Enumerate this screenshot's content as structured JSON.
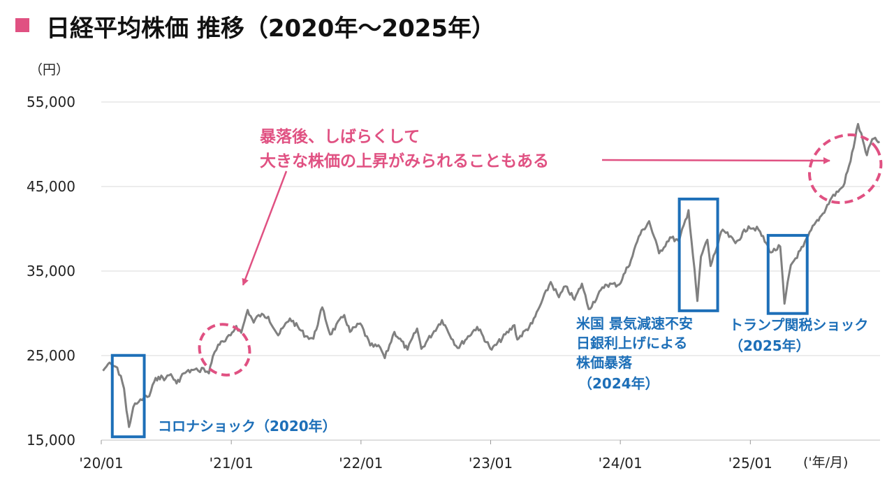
{
  "title": "日経平均株価 推移（2020年〜2025年）",
  "colors": {
    "title_marker": "#e05182",
    "line": "#808080",
    "highlight_box": "#1d6fb8",
    "rise_ellipse": "#e05182",
    "annotation_pink": "#e05182",
    "annotation_blue": "#1d6fb8",
    "grid": "#d9d9d9"
  },
  "chart_data": {
    "type": "line",
    "title": "日経平均株価 推移（2020年〜2025年）",
    "ylabel": "（円）",
    "xlabel": "('年/月)",
    "ylim": [
      15000,
      55000
    ],
    "y_ticks": [
      15000,
      25000,
      35000,
      45000,
      55000
    ],
    "y_tick_labels": [
      "15,000",
      "25,000",
      "35,000",
      "45,000",
      "55,000"
    ],
    "x_range": [
      "2020-01",
      "2026-01"
    ],
    "x_ticks": [
      "2020-01",
      "2021-01",
      "2022-01",
      "2023-01",
      "2024-01",
      "2025-01"
    ],
    "x_tick_labels": [
      "'20/01",
      "'21/01",
      "'22/01",
      "'23/01",
      "'24/01",
      "'25/01"
    ],
    "grid": "horizontal",
    "series": [
      {
        "points": [
          [
            "2020-01-06",
            23200
          ],
          [
            "2020-01-20",
            24000
          ],
          [
            "2020-02-10",
            23700
          ],
          [
            "2020-02-25",
            22600
          ],
          [
            "2020-03-05",
            21100
          ],
          [
            "2020-03-12",
            18500
          ],
          [
            "2020-03-19",
            16550
          ],
          [
            "2020-03-31",
            18900
          ],
          [
            "2020-04-15",
            19500
          ],
          [
            "2020-04-30",
            20000
          ],
          [
            "2020-05-15",
            20200
          ],
          [
            "2020-05-29",
            21900
          ],
          [
            "2020-06-10",
            22500
          ],
          [
            "2020-06-30",
            22300
          ],
          [
            "2020-07-15",
            22800
          ],
          [
            "2020-07-31",
            21700
          ],
          [
            "2020-08-20",
            22900
          ],
          [
            "2020-09-15",
            23300
          ],
          [
            "2020-09-30",
            23200
          ],
          [
            "2020-10-15",
            23500
          ],
          [
            "2020-10-30",
            22900
          ],
          [
            "2020-11-10",
            24900
          ],
          [
            "2020-11-25",
            26300
          ],
          [
            "2020-12-15",
            26700
          ],
          [
            "2020-12-30",
            27400
          ],
          [
            "2021-01-15",
            28500
          ],
          [
            "2021-01-29",
            27700
          ],
          [
            "2021-02-16",
            30400
          ],
          [
            "2021-03-05",
            28900
          ],
          [
            "2021-03-19",
            29800
          ],
          [
            "2021-04-15",
            29600
          ],
          [
            "2021-05-13",
            27400
          ],
          [
            "2021-06-15",
            29400
          ],
          [
            "2021-07-30",
            27300
          ],
          [
            "2021-08-20",
            27000
          ],
          [
            "2021-09-14",
            30700
          ],
          [
            "2021-10-06",
            27500
          ],
          [
            "2021-11-15",
            29800
          ],
          [
            "2021-12-01",
            27800
          ],
          [
            "2021-12-30",
            28800
          ],
          [
            "2022-01-27",
            26200
          ],
          [
            "2022-02-24",
            25970
          ],
          [
            "2022-03-09",
            24700
          ],
          [
            "2022-04-05",
            27800
          ],
          [
            "2022-05-12",
            25700
          ],
          [
            "2022-06-08",
            28200
          ],
          [
            "2022-06-20",
            25800
          ],
          [
            "2022-08-17",
            29200
          ],
          [
            "2022-09-30",
            25900
          ],
          [
            "2022-11-24",
            28400
          ],
          [
            "2022-12-28",
            26100
          ],
          [
            "2023-01-04",
            25700
          ],
          [
            "2023-03-09",
            28600
          ],
          [
            "2023-03-17",
            26900
          ],
          [
            "2023-04-28",
            28800
          ],
          [
            "2023-05-19",
            30800
          ],
          [
            "2023-06-19",
            33700
          ],
          [
            "2023-07-12",
            31900
          ],
          [
            "2023-07-31",
            33200
          ],
          [
            "2023-08-25",
            31600
          ],
          [
            "2023-09-15",
            33500
          ],
          [
            "2023-10-04",
            30500
          ],
          [
            "2023-11-20",
            33400
          ],
          [
            "2023-12-29",
            33400
          ],
          [
            "2024-01-31",
            36300
          ],
          [
            "2024-02-22",
            39100
          ],
          [
            "2024-03-22",
            40900
          ],
          [
            "2024-04-19",
            37100
          ],
          [
            "2024-05-20",
            39000
          ],
          [
            "2024-06-14",
            38500
          ],
          [
            "2024-07-11",
            42200
          ],
          [
            "2024-08-05",
            31460
          ],
          [
            "2024-08-15",
            36700
          ],
          [
            "2024-09-02",
            38700
          ],
          [
            "2024-09-11",
            35600
          ],
          [
            "2024-10-15",
            39900
          ],
          [
            "2024-11-20",
            38300
          ],
          [
            "2024-12-27",
            40300
          ],
          [
            "2025-01-24",
            39900
          ],
          [
            "2025-02-28",
            37200
          ],
          [
            "2025-03-26",
            37900
          ],
          [
            "2025-04-07",
            31140
          ],
          [
            "2025-04-25",
            35700
          ],
          [
            "2025-05-30",
            37900
          ],
          [
            "2025-06-30",
            40500
          ],
          [
            "2025-07-24",
            41800
          ],
          [
            "2025-08-18",
            43700
          ],
          [
            "2025-09-19",
            45000
          ],
          [
            "2025-10-10",
            48000
          ],
          [
            "2025-10-31",
            52400
          ],
          [
            "2025-11-14",
            50400
          ],
          [
            "2025-11-25",
            48700
          ],
          [
            "2025-12-10",
            50600
          ],
          [
            "2025-12-31",
            50300
          ]
        ]
      }
    ],
    "annotations": {
      "rise": [
        "暴落後、しばらくして",
        "大きな株価の上昇がみられることもある"
      ],
      "covid": "コロナショック（2020年）",
      "us_2024": [
        "米国 景気減速不安",
        "日銀利上げによる",
        "株価暴落",
        "（2024年）"
      ],
      "tariff_2025": [
        "トランプ関税ショック",
        "（2025年）"
      ]
    },
    "highlight_boxes": [
      [
        "2020-02-01",
        "2020-05-01"
      ],
      [
        "2024-06-15",
        "2024-10-01"
      ],
      [
        "2025-02-20",
        "2025-06-10"
      ]
    ],
    "rise_ellipses": [
      [
        "2020-10-15",
        "2021-02-10"
      ],
      [
        "2025-07-01",
        "2026-01-01"
      ]
    ]
  }
}
